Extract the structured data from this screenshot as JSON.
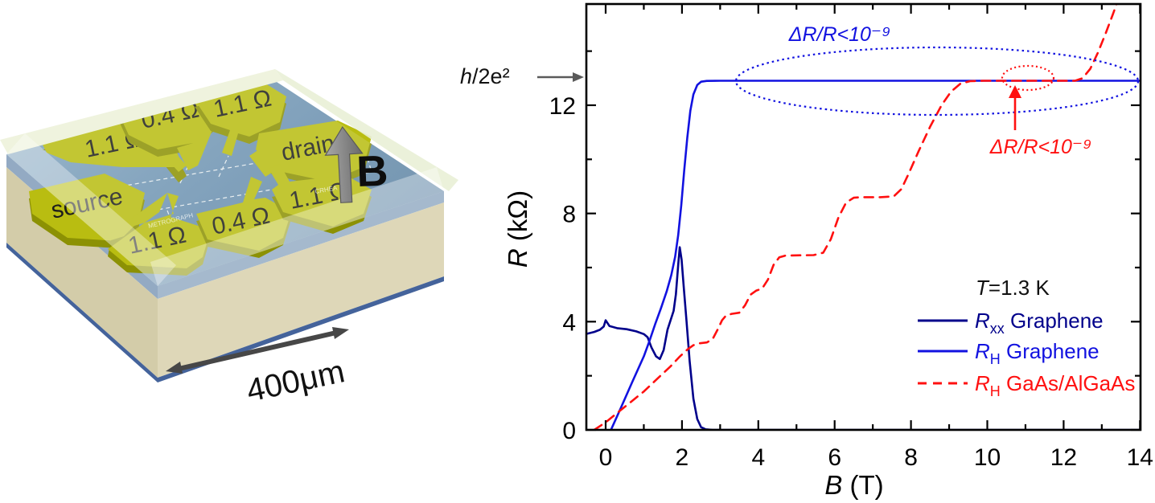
{
  "device": {
    "contacts": [
      {
        "label": "1.1 Ω"
      },
      {
        "label": "0.4 Ω"
      },
      {
        "label": "1.1 Ω"
      },
      {
        "label": "drain"
      },
      {
        "label": "source"
      },
      {
        "label": "1.1 Ω"
      },
      {
        "label": "0.4 Ω"
      },
      {
        "label": "1.1 Ω"
      }
    ],
    "field_label": "B",
    "scale_label": "400μm",
    "watermark_left": "METROGRAPH",
    "watermark_right": "CRHEA",
    "colors": {
      "contact_top": "#b9bd11",
      "contact_side": "#8c9104",
      "surface_blue": "#6f94b6",
      "substrate_beige": "#d9d2b2"
    }
  },
  "chart_data": {
    "type": "line",
    "title": "",
    "xlabel_symbol": "B",
    "xlabel_rest": " (T)",
    "ylabel_symbol": "R",
    "ylabel_rest": " (kΩ)",
    "xlim": [
      -0.5,
      14.05
    ],
    "ylim": [
      0,
      15.7
    ],
    "x_ticks": [
      0,
      2,
      4,
      6,
      8,
      10,
      12,
      14
    ],
    "x_minor_ticks": [
      1,
      3,
      5,
      7,
      9,
      11,
      13
    ],
    "y_ticks": [
      0,
      4,
      8,
      12
    ],
    "y_minor_ticks": [
      2,
      6,
      10,
      14
    ],
    "grid": false,
    "legend_position": "lower right",
    "condition_prefix": "T",
    "condition_rest": "=1.3 K",
    "reference_label_symbol": "h",
    "reference_label_rest": "/2e²",
    "reference_value_kohm": 12.906,
    "annotation_blue": "ΔR/R<10⁻⁹",
    "annotation_red": "ΔR/R<10⁻⁹",
    "legend": [
      {
        "symbol": "R",
        "sub": "xx",
        "rest": " Graphene",
        "color": "#00008B",
        "style": "solid"
      },
      {
        "symbol": "R",
        "sub": "H",
        "rest": " Graphene",
        "color": "#1212E0",
        "style": "solid"
      },
      {
        "symbol": "R",
        "sub": "H",
        "rest": " GaAs/AlGaAs",
        "color": "#FF1010",
        "style": "dashed"
      }
    ],
    "series": [
      {
        "name": "Rxx Graphene",
        "color": "#00008B",
        "style": "solid",
        "points": [
          [
            -0.5,
            3.55
          ],
          [
            -0.3,
            3.62
          ],
          [
            -0.15,
            3.7
          ],
          [
            -0.05,
            3.82
          ],
          [
            0,
            4.05
          ],
          [
            0.1,
            3.84
          ],
          [
            0.3,
            3.76
          ],
          [
            0.55,
            3.72
          ],
          [
            0.8,
            3.64
          ],
          [
            1.0,
            3.54
          ],
          [
            1.1,
            3.42
          ],
          [
            1.2,
            3.05
          ],
          [
            1.32,
            2.72
          ],
          [
            1.42,
            2.62
          ],
          [
            1.52,
            2.95
          ],
          [
            1.62,
            3.7
          ],
          [
            1.7,
            4.05
          ],
          [
            1.78,
            4.4
          ],
          [
            1.84,
            5.0
          ],
          [
            1.9,
            6.1
          ],
          [
            1.94,
            6.75
          ],
          [
            1.99,
            6.3
          ],
          [
            2.05,
            5.2
          ],
          [
            2.12,
            4.0
          ],
          [
            2.2,
            2.55
          ],
          [
            2.3,
            1.15
          ],
          [
            2.4,
            0.4
          ],
          [
            2.5,
            0.1
          ],
          [
            2.62,
            0.02
          ],
          [
            2.8,
            0
          ],
          [
            14.05,
            0
          ]
        ]
      },
      {
        "name": "RH Graphene",
        "color": "#1212E0",
        "style": "solid",
        "points": [
          [
            0.14,
            0
          ],
          [
            0.4,
            0.82
          ],
          [
            0.7,
            1.78
          ],
          [
            1.0,
            2.72
          ],
          [
            1.15,
            3.3
          ],
          [
            1.3,
            3.92
          ],
          [
            1.45,
            4.5
          ],
          [
            1.6,
            5.12
          ],
          [
            1.72,
            5.72
          ],
          [
            1.82,
            6.4
          ],
          [
            1.9,
            7.2
          ],
          [
            1.98,
            8.3
          ],
          [
            2.06,
            9.6
          ],
          [
            2.14,
            10.8
          ],
          [
            2.22,
            11.8
          ],
          [
            2.3,
            12.4
          ],
          [
            2.4,
            12.75
          ],
          [
            2.5,
            12.87
          ],
          [
            2.65,
            12.9
          ],
          [
            3.0,
            12.906
          ],
          [
            14.05,
            12.906
          ]
        ]
      },
      {
        "name": "RH GaAs/AlGaAs",
        "color": "#FF1010",
        "style": "dashed",
        "points": [
          [
            -0.3,
            0
          ],
          [
            0,
            0.28
          ],
          [
            0.5,
            0.85
          ],
          [
            1.0,
            1.42
          ],
          [
            1.4,
            1.95
          ],
          [
            1.7,
            2.35
          ],
          [
            1.95,
            2.72
          ],
          [
            2.15,
            2.98
          ],
          [
            2.3,
            3.13
          ],
          [
            2.45,
            3.2
          ],
          [
            2.65,
            3.23
          ],
          [
            2.8,
            3.35
          ],
          [
            2.95,
            3.75
          ],
          [
            3.05,
            4.05
          ],
          [
            3.15,
            4.22
          ],
          [
            3.3,
            4.29
          ],
          [
            3.5,
            4.33
          ],
          [
            3.65,
            4.6
          ],
          [
            3.8,
            5.0
          ],
          [
            3.95,
            5.15
          ],
          [
            4.1,
            5.22
          ],
          [
            4.25,
            5.55
          ],
          [
            4.4,
            6.1
          ],
          [
            4.55,
            6.38
          ],
          [
            4.7,
            6.44
          ],
          [
            5.0,
            6.45
          ],
          [
            5.45,
            6.46
          ],
          [
            5.7,
            6.55
          ],
          [
            5.9,
            7.05
          ],
          [
            6.1,
            7.85
          ],
          [
            6.3,
            8.4
          ],
          [
            6.5,
            8.58
          ],
          [
            6.7,
            8.6
          ],
          [
            7.2,
            8.6
          ],
          [
            7.55,
            8.63
          ],
          [
            7.75,
            8.9
          ],
          [
            7.95,
            9.5
          ],
          [
            8.2,
            10.3
          ],
          [
            8.5,
            11.2
          ],
          [
            8.8,
            12.0
          ],
          [
            9.05,
            12.5
          ],
          [
            9.3,
            12.8
          ],
          [
            9.55,
            12.89
          ],
          [
            9.9,
            12.905
          ],
          [
            12.3,
            12.906
          ],
          [
            12.5,
            13.0
          ],
          [
            12.7,
            13.35
          ],
          [
            12.9,
            13.95
          ],
          [
            13.1,
            14.65
          ],
          [
            13.3,
            15.4
          ],
          [
            13.45,
            16.0
          ]
        ]
      }
    ]
  }
}
